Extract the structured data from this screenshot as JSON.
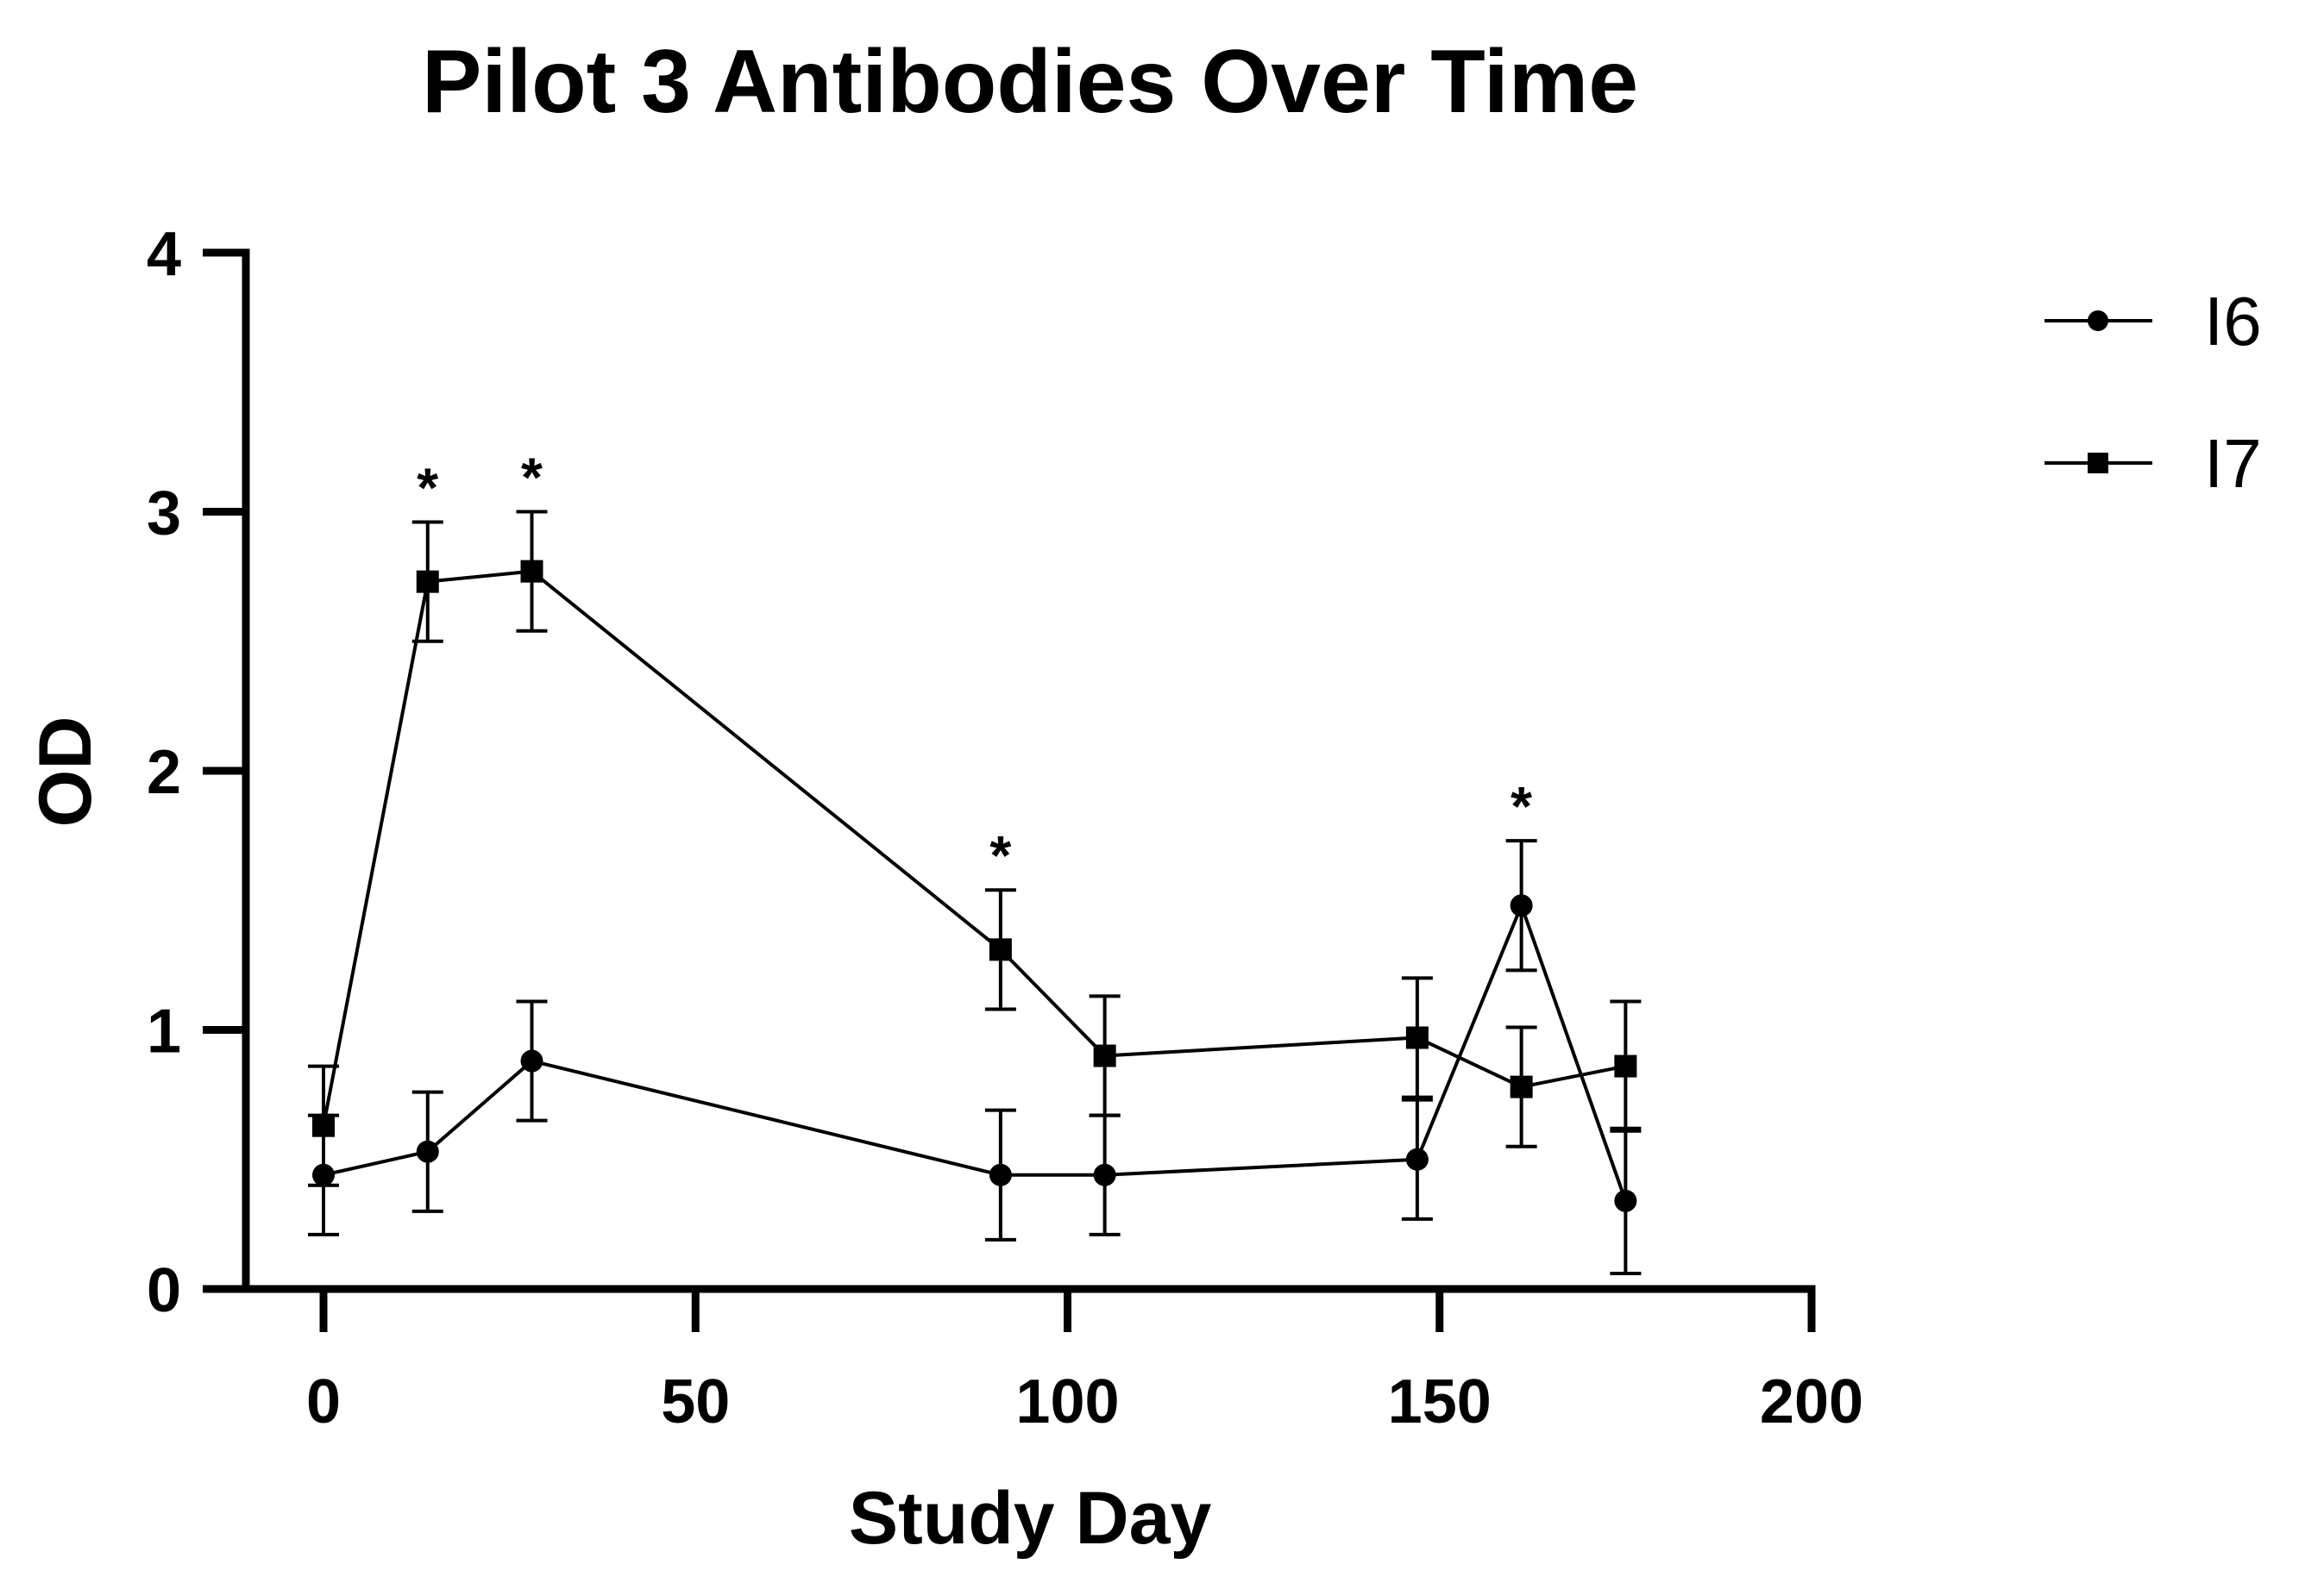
{
  "chart_data": {
    "type": "line",
    "title": "Pilot 3 Antibodies Over Time",
    "xlabel": "Study Day",
    "ylabel": "OD",
    "xlim": [
      0,
      200
    ],
    "ylim": [
      0,
      4
    ],
    "xticks": [
      0,
      50,
      100,
      150,
      200
    ],
    "yticks": [
      0,
      1,
      2,
      3,
      4
    ],
    "grid": false,
    "legend_position": "top-right",
    "series": [
      {
        "name": "I6",
        "marker": "circle",
        "color": "#000000",
        "x": [
          0,
          14,
          28,
          91,
          105,
          147,
          161,
          175
        ],
        "y": [
          0.44,
          0.53,
          0.88,
          0.44,
          0.44,
          0.5,
          1.48,
          0.34
        ],
        "error": [
          0.23,
          0.23,
          0.23,
          0.25,
          0.23,
          0.23,
          0.25,
          0.28
        ]
      },
      {
        "name": "I7",
        "marker": "square",
        "color": "#000000",
        "x": [
          0,
          14,
          28,
          91,
          105,
          147,
          161,
          175
        ],
        "y": [
          0.63,
          2.73,
          2.77,
          1.31,
          0.9,
          0.97,
          0.78,
          0.86
        ],
        "error": [
          0.23,
          0.23,
          0.23,
          0.23,
          0.23,
          0.23,
          0.23,
          0.25
        ]
      }
    ],
    "annotations": [
      {
        "text": "*",
        "x": 14,
        "y": 2.96
      },
      {
        "text": "*",
        "x": 28,
        "y": 3.0
      },
      {
        "text": "*",
        "x": 91,
        "y": 1.54
      },
      {
        "text": "*",
        "x": 161,
        "y": 1.73
      }
    ]
  }
}
